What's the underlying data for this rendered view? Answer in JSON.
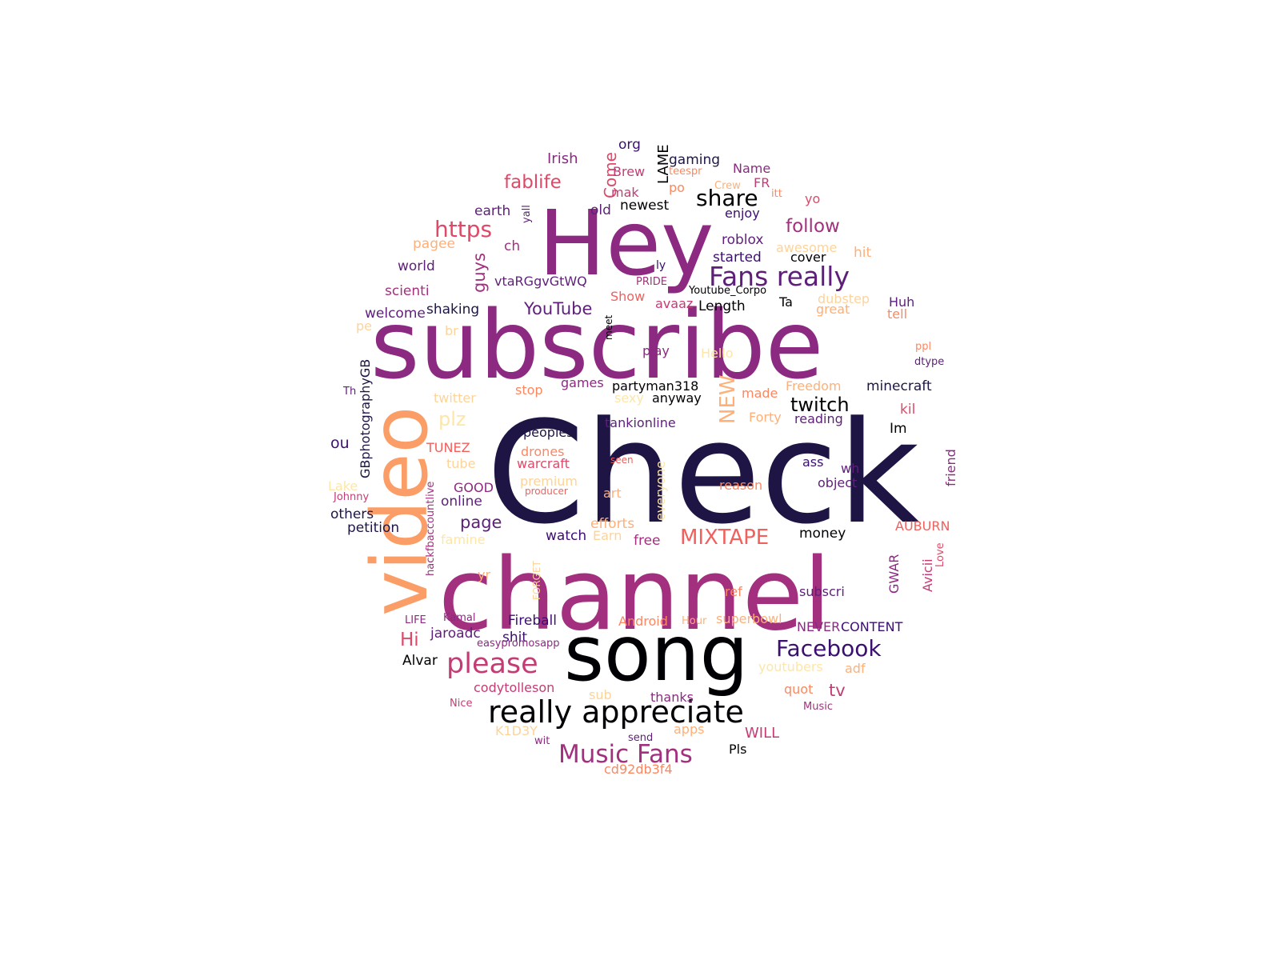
{
  "palette": {
    "dark_navy": "#1f1545",
    "deep_purple": "#3b0f70",
    "purple": "#5e1f7a",
    "plum": "#8c2981",
    "magenta": "#a3307e",
    "pink": "#c43c75",
    "rose": "#de4968",
    "coral": "#f1605d",
    "orange": "#fb8861",
    "peach": "#feb078",
    "light_peach": "#fcd49b",
    "cream": "#fde6a8",
    "black": "#000004"
  },
  "words": [
    {
      "text": "Check",
      "color": "#1f1545"
    },
    {
      "text": "subscribe",
      "color": "#8c2981"
    },
    {
      "text": "channel",
      "color": "#a3307e"
    },
    {
      "text": "Hey",
      "color": "#8c2981"
    },
    {
      "text": "song",
      "color": "#000004"
    },
    {
      "text": "video",
      "color": "#fb9d66"
    },
    {
      "text": "really appreciate",
      "color": "#000004"
    },
    {
      "text": "Music Fans",
      "color": "#a3307e"
    },
    {
      "text": "please",
      "color": "#c43c75"
    },
    {
      "text": "Fans really",
      "color": "#5e1f7a"
    },
    {
      "text": "Facebook",
      "color": "#3b0f70"
    },
    {
      "text": "MIXTAPE",
      "color": "#f1605d"
    },
    {
      "text": "https",
      "color": "#de4968"
    },
    {
      "text": "share",
      "color": "#000004"
    },
    {
      "text": "follow",
      "color": "#a3307e"
    },
    {
      "text": "fablife",
      "color": "#de4968"
    },
    {
      "text": "YouTube",
      "color": "#5e1f7a"
    },
    {
      "text": "twitch",
      "color": "#000004"
    },
    {
      "text": "plz",
      "color": "#fde6a8"
    },
    {
      "text": "page",
      "color": "#5e1f7a"
    },
    {
      "text": "Hi",
      "color": "#de4968"
    },
    {
      "text": "guys",
      "color": "#a3307e"
    },
    {
      "text": "NEW",
      "color": "#feb078"
    },
    {
      "text": "tv",
      "color": "#c43c75"
    },
    {
      "text": "ou",
      "color": "#3b0f70"
    },
    {
      "text": "Come",
      "color": "#de4968"
    },
    {
      "text": "LAME",
      "color": "#000004"
    },
    {
      "text": "GBphotographyGB",
      "color": "#1f1545"
    },
    {
      "text": "minecraft",
      "color": "#1f1545"
    },
    {
      "text": "partyman318",
      "color": "#000004"
    },
    {
      "text": "Irish",
      "color": "#8c2981"
    },
    {
      "text": "org",
      "color": "#3b0f70"
    },
    {
      "text": "gaming",
      "color": "#1f1545"
    },
    {
      "text": "Name",
      "color": "#8c2981"
    },
    {
      "text": "teespr",
      "color": "#fb8861"
    },
    {
      "text": "Brew",
      "color": "#c43c75"
    },
    {
      "text": "FR",
      "color": "#c43c75"
    },
    {
      "text": "po",
      "color": "#fb8861"
    },
    {
      "text": "mak",
      "color": "#c43c75"
    },
    {
      "text": "Crew",
      "color": "#feb078"
    },
    {
      "text": "itt",
      "color": "#fb8861"
    },
    {
      "text": "yo",
      "color": "#de4968"
    },
    {
      "text": "earth",
      "color": "#5e1f7a"
    },
    {
      "text": "yall",
      "color": "#5e1f7a"
    },
    {
      "text": "old",
      "color": "#5e1f7a"
    },
    {
      "text": "newest",
      "color": "#000004"
    },
    {
      "text": "enjoy",
      "color": "#3b0f70"
    },
    {
      "text": "ch",
      "color": "#a3307e"
    },
    {
      "text": "pagee",
      "color": "#feb078"
    },
    {
      "text": "roblox",
      "color": "#5e1f7a"
    },
    {
      "text": "awesome",
      "color": "#fcd49b"
    },
    {
      "text": "started",
      "color": "#3b0f70"
    },
    {
      "text": "cover",
      "color": "#000004"
    },
    {
      "text": "hit",
      "color": "#feb078"
    },
    {
      "text": "world",
      "color": "#5e1f7a"
    },
    {
      "text": "ly",
      "color": "#3b0f70"
    },
    {
      "text": "PRIDE",
      "color": "#a3307e"
    },
    {
      "text": "Youtube_Corpo",
      "color": "#000004"
    },
    {
      "text": "vtaRGgvGtWQ",
      "color": "#5e1f7a"
    },
    {
      "text": "scienti",
      "color": "#a3307e"
    },
    {
      "text": "Show",
      "color": "#f1605d"
    },
    {
      "text": "avaaz",
      "color": "#c43c75"
    },
    {
      "text": "Length",
      "color": "#000004"
    },
    {
      "text": "Ta",
      "color": "#000004"
    },
    {
      "text": "dubstep",
      "color": "#fcd49b"
    },
    {
      "text": "Huh",
      "color": "#5e1f7a"
    },
    {
      "text": "great",
      "color": "#feb078"
    },
    {
      "text": "tell",
      "color": "#fb8861"
    },
    {
      "text": "welcome",
      "color": "#5e1f7a"
    },
    {
      "text": "shaking",
      "color": "#1f1545"
    },
    {
      "text": "meet",
      "color": "#000004"
    },
    {
      "text": "pe",
      "color": "#fcd49b"
    },
    {
      "text": "br",
      "color": "#fcd49b"
    },
    {
      "text": "play",
      "color": "#8c2981"
    },
    {
      "text": "Hello",
      "color": "#fde6a8"
    },
    {
      "text": "ppl",
      "color": "#fb8861"
    },
    {
      "text": "dtype",
      "color": "#5e1f7a"
    },
    {
      "text": "Th",
      "color": "#5e1f7a"
    },
    {
      "text": "twitter",
      "color": "#fcd49b"
    },
    {
      "text": "stop",
      "color": "#fb8861"
    },
    {
      "text": "games",
      "color": "#8c2981"
    },
    {
      "text": "sexy",
      "color": "#fde6a8"
    },
    {
      "text": "anyway",
      "color": "#000004"
    },
    {
      "text": "made",
      "color": "#fb8861"
    },
    {
      "text": "Freedom",
      "color": "#feb078"
    },
    {
      "text": "Forty",
      "color": "#feb078"
    },
    {
      "text": "reading",
      "color": "#5e1f7a"
    },
    {
      "text": "kil",
      "color": "#de4968"
    },
    {
      "text": "tankionline",
      "color": "#5e1f7a"
    },
    {
      "text": "Im",
      "color": "#000004"
    },
    {
      "text": "peoples",
      "color": "#1f1545"
    },
    {
      "text": "drones",
      "color": "#fb8861"
    },
    {
      "text": "seen",
      "color": "#f1605d"
    },
    {
      "text": "everyone",
      "color": "#fde6a8"
    },
    {
      "text": "TUNEZ",
      "color": "#f1605d"
    },
    {
      "text": "tube",
      "color": "#fcd49b"
    },
    {
      "text": "warcraft",
      "color": "#de4968"
    },
    {
      "text": "ass",
      "color": "#3b0f70"
    },
    {
      "text": "wh",
      "color": "#5e1f7a"
    },
    {
      "text": "friend",
      "color": "#8c2981"
    },
    {
      "text": "premium",
      "color": "#fcd49b"
    },
    {
      "text": "object",
      "color": "#5e1f7a"
    },
    {
      "text": "Lake",
      "color": "#fde6a8"
    },
    {
      "text": "hackfbaccountlive",
      "color": "#a3307e"
    },
    {
      "text": "GOOD",
      "color": "#8c2981"
    },
    {
      "text": "producer",
      "color": "#f1605d"
    },
    {
      "text": "art",
      "color": "#feb078"
    },
    {
      "text": "reason",
      "color": "#fb8861"
    },
    {
      "text": "Johnny",
      "color": "#c43c75"
    },
    {
      "text": "online",
      "color": "#5e1f7a"
    },
    {
      "text": "others",
      "color": "#1f1545"
    },
    {
      "text": "efforts",
      "color": "#feb078"
    },
    {
      "text": "petition",
      "color": "#1f1545"
    },
    {
      "text": "famine",
      "color": "#fde6a8"
    },
    {
      "text": "Earn",
      "color": "#fcd49b"
    },
    {
      "text": "watch",
      "color": "#3b0f70"
    },
    {
      "text": "free",
      "color": "#a3307e"
    },
    {
      "text": "money",
      "color": "#000004"
    },
    {
      "text": "AUBURN",
      "color": "#f1605d"
    },
    {
      "text": "Avicii",
      "color": "#c43c75"
    },
    {
      "text": "Love",
      "color": "#de4968"
    },
    {
      "text": "yr",
      "color": "#feb078"
    },
    {
      "text": "FORGET",
      "color": "#fcd49b"
    },
    {
      "text": "GWAR",
      "color": "#8c2981"
    },
    {
      "text": "ref",
      "color": "#fb8861"
    },
    {
      "text": "subscri",
      "color": "#5e1f7a"
    },
    {
      "text": "LIFE",
      "color": "#8c2981"
    },
    {
      "text": "Kamal",
      "color": "#8c2981"
    },
    {
      "text": "Fireball",
      "color": "#3b0f70"
    },
    {
      "text": "Android",
      "color": "#fb8861"
    },
    {
      "text": "Hour",
      "color": "#feb078"
    },
    {
      "text": "superbowl",
      "color": "#feb078"
    },
    {
      "text": "NEVER",
      "color": "#8c2981"
    },
    {
      "text": "CONTENT",
      "color": "#3b0f70"
    },
    {
      "text": "jaroadc",
      "color": "#5e1f7a"
    },
    {
      "text": "shit",
      "color": "#3b0f70"
    },
    {
      "text": "easypromosapp",
      "color": "#8c2981"
    },
    {
      "text": "Alvar",
      "color": "#000004"
    },
    {
      "text": "youtubers",
      "color": "#fde6a8"
    },
    {
      "text": "adf",
      "color": "#feb078"
    },
    {
      "text": "codytolleson",
      "color": "#c43c75"
    },
    {
      "text": "sub",
      "color": "#fcd49b"
    },
    {
      "text": "thanks",
      "color": "#8c2981"
    },
    {
      "text": "quot",
      "color": "#fb8861"
    },
    {
      "text": "Nice",
      "color": "#c43c75"
    },
    {
      "text": "Music",
      "color": "#a3307e"
    },
    {
      "text": "K1D3Y",
      "color": "#fcd49b"
    },
    {
      "text": "apps",
      "color": "#feb078"
    },
    {
      "text": "WILL",
      "color": "#c43c75"
    },
    {
      "text": "wit",
      "color": "#8c2981"
    },
    {
      "text": "send",
      "color": "#5e1f7a"
    },
    {
      "text": "Pls",
      "color": "#000004"
    },
    {
      "text": "cd92db3f4",
      "color": "#fb8861"
    }
  ]
}
